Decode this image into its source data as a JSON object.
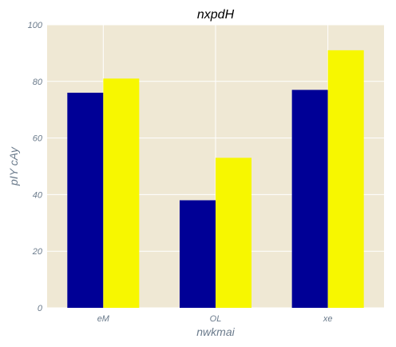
{
  "chart_data": {
    "type": "bar",
    "title": "nxpdH",
    "xlabel": "nwkmai",
    "ylabel": "pIY  cAy",
    "categories": [
      "eM",
      "OL",
      "xe"
    ],
    "series": [
      {
        "values": [
          76,
          38,
          77
        ],
        "color": "#000096"
      },
      {
        "values": [
          81,
          53,
          91
        ],
        "color": "#f7f700"
      }
    ],
    "ylim": [
      0,
      100
    ],
    "yticks": [
      "0",
      "20",
      "40",
      "60",
      "80",
      "100"
    ],
    "ytick_values": [
      0,
      20,
      40,
      60,
      80,
      100
    ],
    "grid": true,
    "legend": "none",
    "colors": {
      "plot_background": "#efe8d4",
      "grid": "#ffffff",
      "text": "#6b7b8c"
    }
  }
}
